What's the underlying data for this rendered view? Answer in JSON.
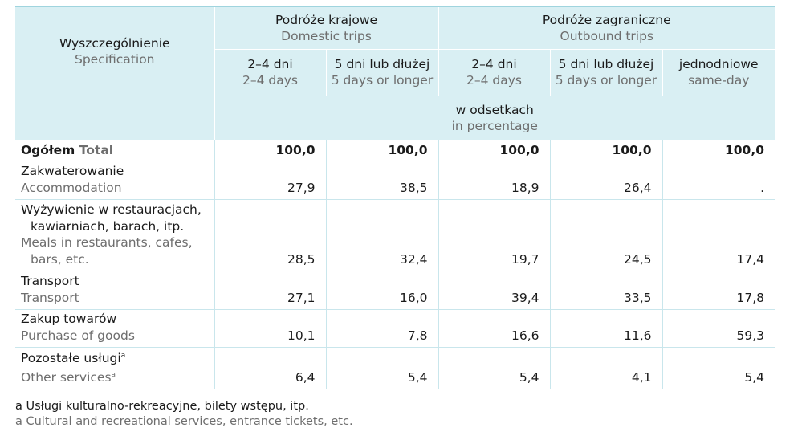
{
  "header": {
    "spec_pl": "Wyszczególnienie",
    "spec_en": "Specification",
    "domestic_pl": "Podróże krajowe",
    "domestic_en": "Domestic trips",
    "outbound_pl": "Podróże zagraniczne",
    "outbound_en": "Outbound trips",
    "sub": [
      {
        "pl": "2–4 dni",
        "en": "2–4 days"
      },
      {
        "pl": "5 dni lub dłużej",
        "en": "5 days or longer"
      },
      {
        "pl": "2–4 dni",
        "en": "2–4 days"
      },
      {
        "pl": "5 dni lub dłużej",
        "en": "5 days or longer"
      },
      {
        "pl": "jednodniowe",
        "en": "same-day"
      }
    ],
    "unit_pl": "w odsetkach",
    "unit_en": "in percentage"
  },
  "rows": {
    "total": {
      "pl": "Ogółem",
      "en": "Total",
      "values": [
        "100,0",
        "100,0",
        "100,0",
        "100,0",
        "100,0"
      ]
    },
    "accommodation": {
      "pl": "Zakwaterowanie",
      "en": "Accommodation",
      "values": [
        "27,9",
        "38,5",
        "18,9",
        "26,4",
        "."
      ]
    },
    "meals": {
      "pl1": "Wyżywienie w restauracjach,",
      "pl2": "kawiarniach, barach, itp.",
      "en1": "Meals in restaurants, cafes,",
      "en2": "bars, etc.",
      "values": [
        "28,5",
        "32,4",
        "19,7",
        "24,5",
        "17,4"
      ]
    },
    "transport": {
      "pl": "Transport",
      "en": "Transport",
      "values": [
        "27,1",
        "16,0",
        "39,4",
        "33,5",
        "17,8"
      ]
    },
    "goods": {
      "pl": "Zakup towarów",
      "en": "Purchase of goods",
      "values": [
        "10,1",
        "7,8",
        "16,6",
        "11,6",
        "59,3"
      ]
    },
    "other": {
      "pl": "Pozostałe usługi",
      "en": "Other services",
      "mark": "a",
      "values": [
        "6,4",
        "5,4",
        "5,4",
        "4,1",
        "5,4"
      ]
    }
  },
  "footnotes": {
    "pl": "a Usługi kulturalno-rekreacyjne, bilety wstępu, itp.",
    "en": "a Cultural and recreational services, entrance tickets, etc."
  }
}
